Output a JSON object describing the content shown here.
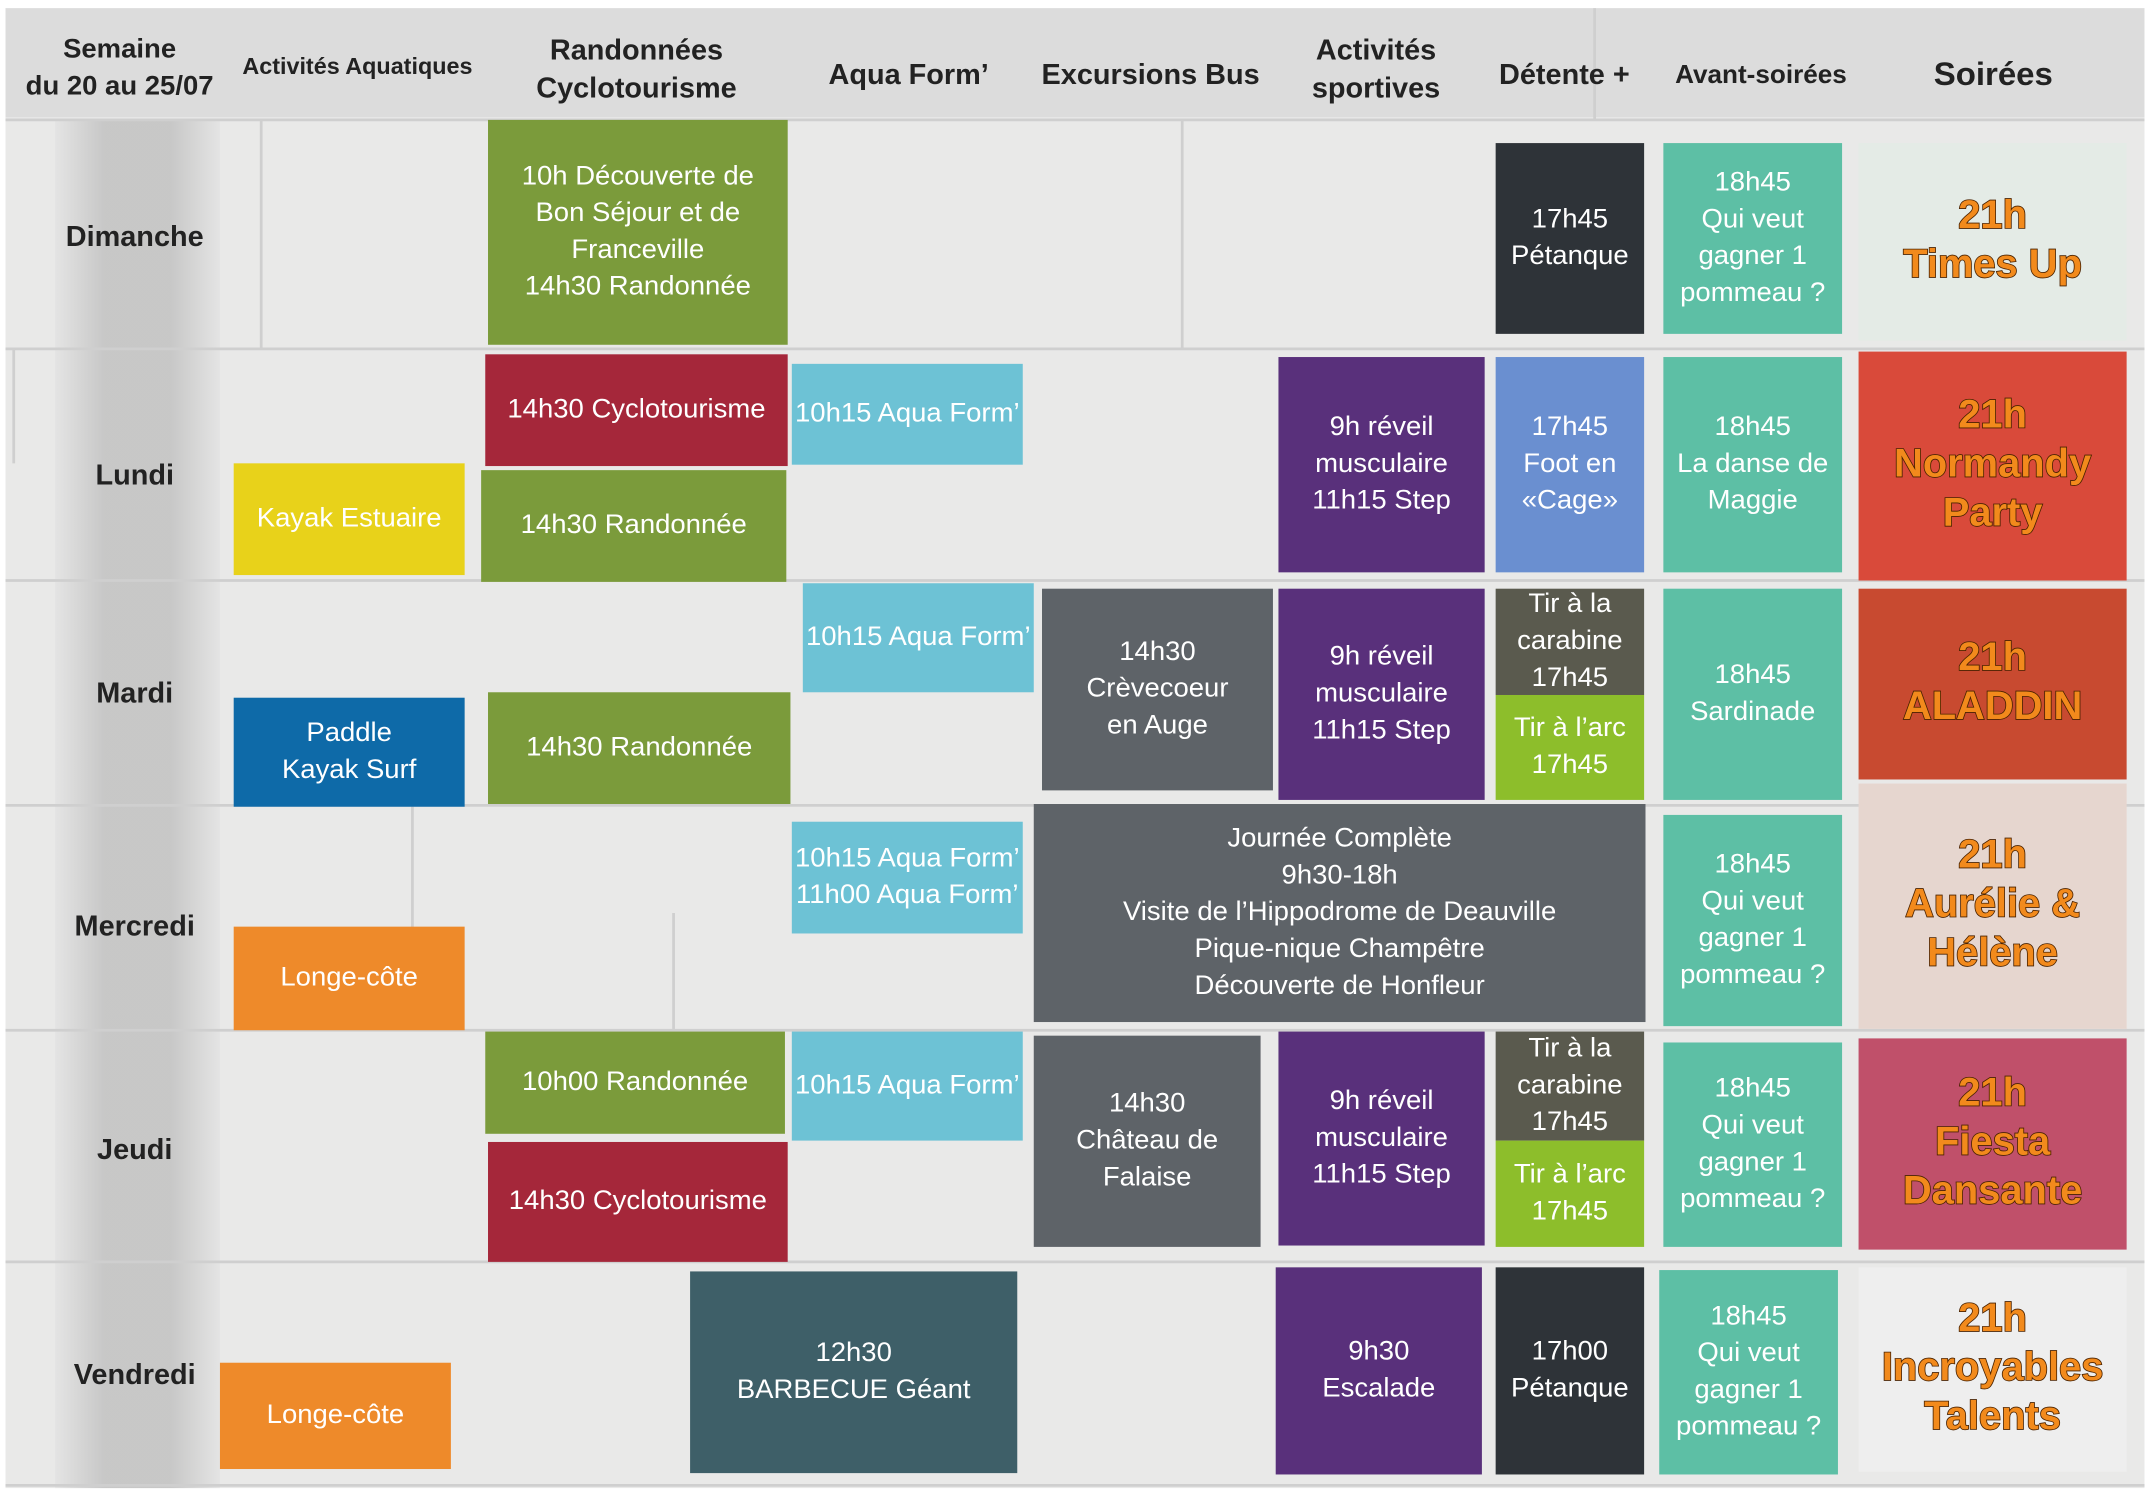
{
  "header": {
    "week": [
      "Semaine",
      "du 20 au 25/07"
    ],
    "columns": [
      [
        "Activités Aquatiques"
      ],
      [
        "Randonnées",
        "Cyclotourisme"
      ],
      [
        "Aqua Form’"
      ],
      [
        "Excursions Bus"
      ],
      [
        "Activités",
        "sportives"
      ],
      [
        "Détente +"
      ],
      [
        "Avant-soirées"
      ],
      [
        "Soirées"
      ]
    ]
  },
  "days": [
    "Dimanche",
    "Lundi",
    "Mardi",
    "Mercredi",
    "Jeudi",
    "Vendredi"
  ],
  "blocks": [
    {
      "lines": [
        "10h Découverte de",
        "Bon Séjour et de",
        "Franceville",
        "14h30 Randonnée"
      ]
    },
    {
      "lines": [
        "17h45",
        "Pétanque"
      ]
    },
    {
      "lines": [
        "18h45",
        "Qui veut",
        "gagner 1",
        "pommeau ?"
      ]
    },
    {
      "lines": [
        "21h",
        "Times Up"
      ]
    },
    {
      "lines": [
        "14h30 Cyclotourisme"
      ]
    },
    {
      "lines": [
        "10h15 Aqua Form’"
      ]
    },
    {
      "lines": [
        "9h réveil",
        "musculaire",
        "11h15 Step"
      ]
    },
    {
      "lines": [
        "17h45",
        "Foot en",
        "«Cage»"
      ]
    },
    {
      "lines": [
        "18h45",
        "La danse de",
        "Maggie"
      ]
    },
    {
      "lines": [
        "Kayak Estuaire"
      ]
    },
    {
      "lines": [
        "14h30 Randonnée"
      ]
    },
    {
      "lines": [
        "21h",
        "Normandy",
        "Party"
      ]
    },
    {
      "lines": [
        "10h15 Aqua Form’"
      ]
    },
    {
      "lines": [
        "14h30",
        "Crèvecoeur",
        "en Auge"
      ]
    },
    {
      "lines": [
        "9h réveil",
        "musculaire",
        "11h15 Step"
      ]
    },
    {
      "lines": [
        "Tir à la",
        "carabine",
        "17h45"
      ]
    },
    {
      "lines": [
        "Tir à l’arc",
        "17h45"
      ]
    },
    {
      "lines": [
        "18h45",
        "Sardinade"
      ]
    },
    {
      "lines": [
        "Paddle",
        "Kayak Surf"
      ]
    },
    {
      "lines": [
        "14h30 Randonnée"
      ]
    },
    {
      "lines": [
        "21h",
        "ALADDIN"
      ]
    },
    {
      "lines": [
        "10h15 Aqua Form’",
        "11h00 Aqua Form’"
      ]
    },
    {
      "lines": [
        "Journée Complète",
        "9h30-18h",
        "Visite de l’Hippodrome de Deauville",
        "Pique-nique Champêtre",
        "Découverte de Honfleur"
      ]
    },
    {
      "lines": [
        "18h45",
        "Qui veut",
        "gagner 1",
        "pommeau ?"
      ]
    },
    {
      "lines": [
        "Longe-côte"
      ]
    },
    {
      "lines": [
        "21h",
        "Aurélie &",
        "Hélène"
      ]
    },
    {
      "lines": [
        "10h00 Randonnée"
      ]
    },
    {
      "lines": [
        "10h15 Aqua Form’"
      ]
    },
    {
      "lines": [
        "14h30",
        "Château de",
        "Falaise"
      ]
    },
    {
      "lines": [
        "9h réveil",
        "musculaire",
        "11h15 Step"
      ]
    },
    {
      "lines": [
        "Tir à la",
        "carabine",
        "17h45"
      ]
    },
    {
      "lines": [
        "Tir à l’arc",
        "17h45"
      ]
    },
    {
      "lines": [
        "18h45",
        "Qui veut",
        "gagner 1",
        "pommeau ?"
      ]
    },
    {
      "lines": [
        "14h30 Cyclotourisme"
      ]
    },
    {
      "lines": [
        "21h",
        "Fiesta",
        "Dansante"
      ]
    },
    {
      "lines": [
        "12h30",
        "BARBECUE Géant"
      ]
    },
    {
      "lines": [
        "9h30",
        "Escalade"
      ]
    },
    {
      "lines": [
        "17h00",
        "Pétanque"
      ]
    },
    {
      "lines": [
        "18h45",
        "Qui veut",
        "gagner 1",
        "pommeau ?"
      ]
    },
    {
      "lines": [
        "Longe-côte"
      ]
    },
    {
      "lines": [
        "21h",
        "Incroyables",
        "Talents"
      ]
    }
  ]
}
